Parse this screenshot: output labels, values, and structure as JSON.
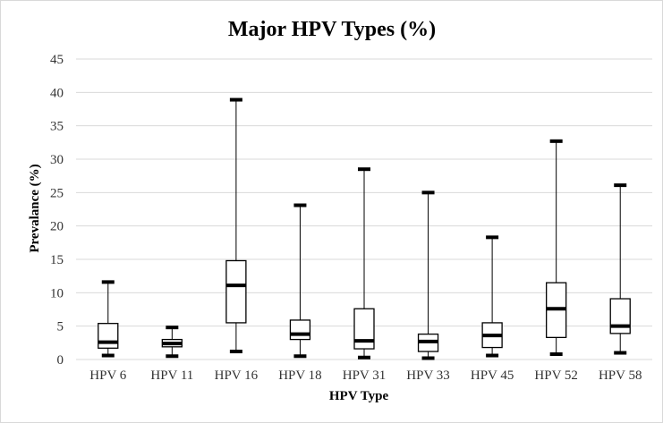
{
  "chart_data": {
    "type": "box",
    "title": "Major HPV Types (%)",
    "xlabel": "HPV Type",
    "ylabel": "Prevalance (%)",
    "ylim": [
      0,
      45
    ],
    "yticks": [
      0,
      5,
      10,
      15,
      20,
      25,
      30,
      35,
      40,
      45
    ],
    "grid": true,
    "legend": "none",
    "categories": [
      "HPV 6",
      "HPV 11",
      "HPV 16",
      "HPV 18",
      "HPV 31",
      "HPV 33",
      "HPV 45",
      "HPV 52",
      "HPV 58"
    ],
    "boxes": [
      {
        "min": 0.6,
        "q1": 1.7,
        "median": 2.6,
        "q3": 5.4,
        "max": 11.6
      },
      {
        "min": 0.5,
        "q1": 1.9,
        "median": 2.4,
        "q3": 3.0,
        "max": 4.8
      },
      {
        "min": 1.2,
        "q1": 5.5,
        "median": 11.1,
        "q3": 14.8,
        "max": 38.9
      },
      {
        "min": 0.5,
        "q1": 3.0,
        "median": 3.8,
        "q3": 5.9,
        "max": 23.1
      },
      {
        "min": 0.3,
        "q1": 1.6,
        "median": 2.8,
        "q3": 7.6,
        "max": 28.5
      },
      {
        "min": 0.2,
        "q1": 1.2,
        "median": 2.7,
        "q3": 3.8,
        "max": 25.0
      },
      {
        "min": 0.6,
        "q1": 1.8,
        "median": 3.6,
        "q3": 5.5,
        "max": 18.3
      },
      {
        "min": 0.8,
        "q1": 3.3,
        "median": 7.6,
        "q3": 11.5,
        "max": 32.7
      },
      {
        "min": 1.0,
        "q1": 3.9,
        "median": 5.0,
        "q3": 9.1,
        "max": 26.1
      }
    ]
  }
}
